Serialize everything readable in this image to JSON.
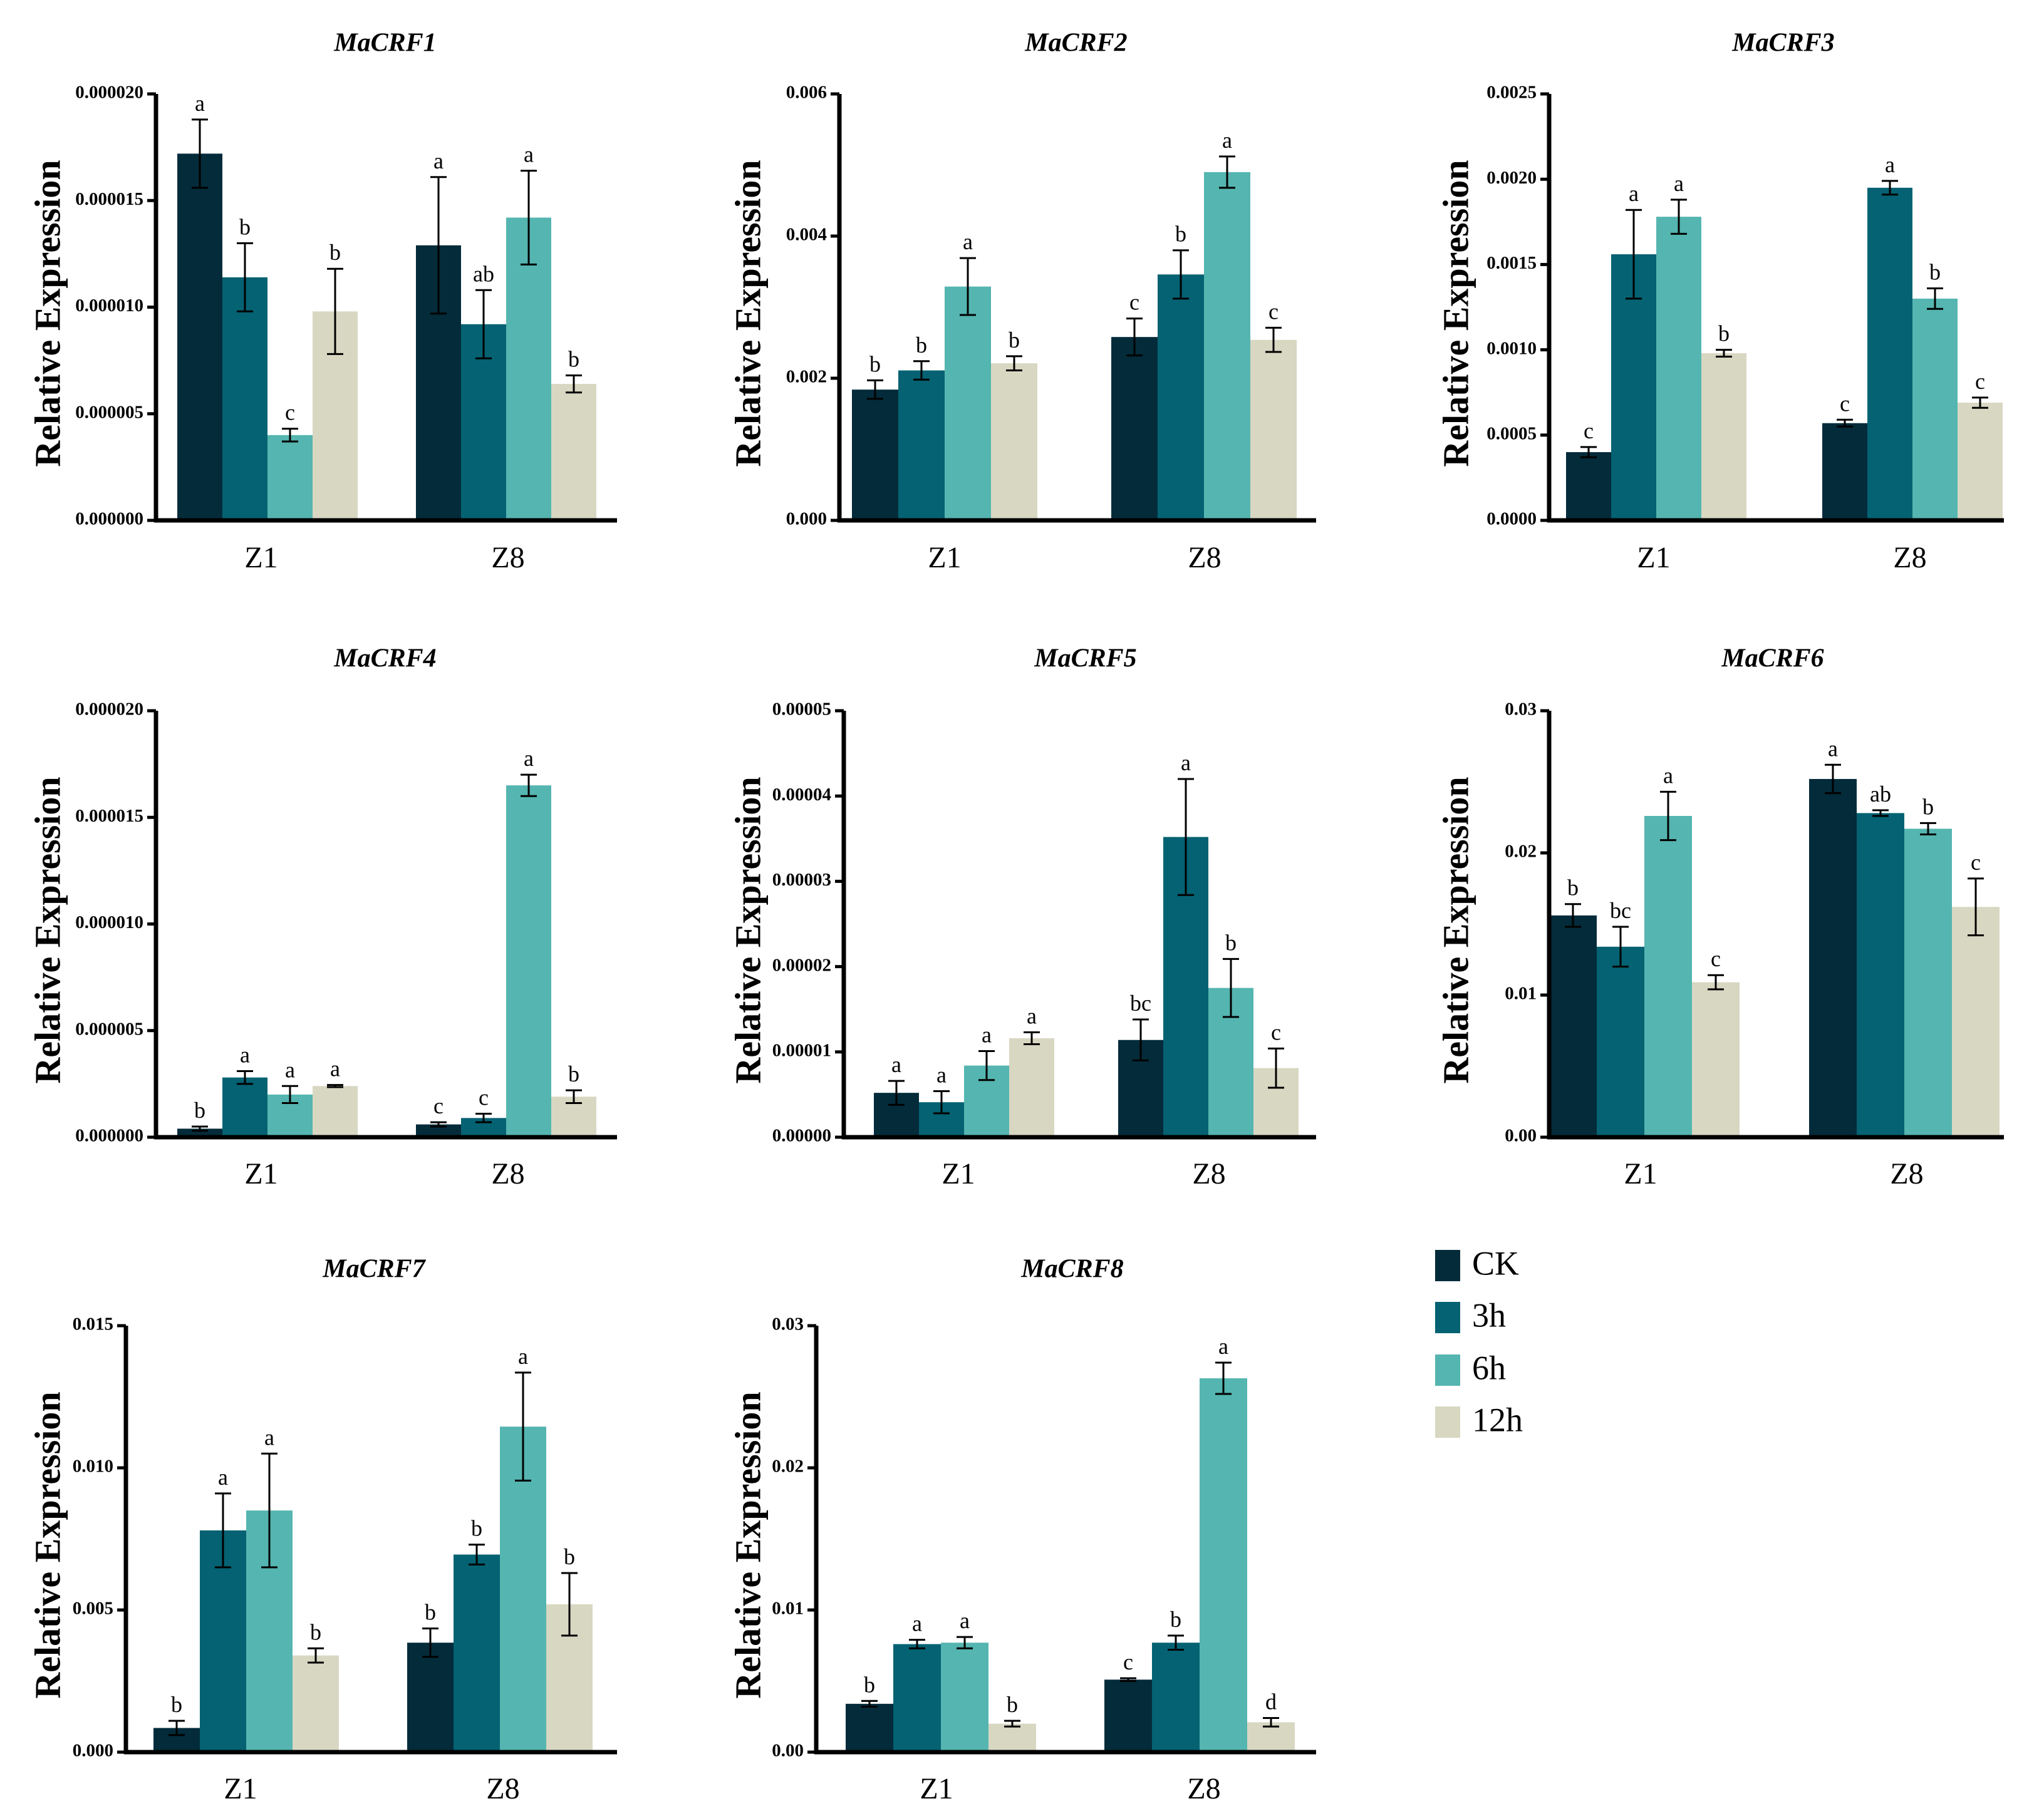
{
  "colors": {
    "CK": "#032b3a",
    "3h": "#046272",
    "6h": "#55b5b0",
    "12h": "#d8d7c2"
  },
  "legend": {
    "items": [
      "CK",
      "3h",
      "6h",
      "12h"
    ]
  },
  "chart_data": [
    {
      "type": "bar",
      "title": "MaCRF1",
      "ylabel": "Relative Expression",
      "categories": [
        "Z1",
        "Z8"
      ],
      "ylim": [
        0,
        2e-05
      ],
      "yticks": [
        "0.000000",
        "0.000005",
        "0.000010",
        "0.000015",
        "0.000020"
      ],
      "series": [
        {
          "name": "CK",
          "values": [
            1.72e-05,
            1.29e-05
          ],
          "errors": [
            1.6e-06,
            3.2e-06
          ],
          "letters": [
            "a",
            "a"
          ]
        },
        {
          "name": "3h",
          "values": [
            1.14e-05,
            9.2e-06
          ],
          "errors": [
            1.6e-06,
            1.6e-06
          ],
          "letters": [
            "b",
            "ab"
          ]
        },
        {
          "name": "6h",
          "values": [
            4e-06,
            1.42e-05
          ],
          "errors": [
            3e-07,
            2.2e-06
          ],
          "letters": [
            "c",
            "a"
          ]
        },
        {
          "name": "12h",
          "values": [
            9.8e-06,
            6.4e-06
          ],
          "errors": [
            2e-06,
            4e-07
          ],
          "letters": [
            "b",
            "b"
          ]
        }
      ]
    },
    {
      "type": "bar",
      "title": "MaCRF2",
      "ylabel": "Relative Expression",
      "categories": [
        "Z1",
        "Z8"
      ],
      "ylim": [
        0,
        0.006
      ],
      "yticks": [
        "0.000",
        "0.002",
        "0.004",
        "0.006"
      ],
      "series": [
        {
          "name": "CK",
          "values": [
            0.00184,
            0.00258
          ],
          "errors": [
            0.00013,
            0.00026
          ],
          "letters": [
            "b",
            "c"
          ]
        },
        {
          "name": "3h",
          "values": [
            0.00211,
            0.00346
          ],
          "errors": [
            0.00013,
            0.00034
          ],
          "letters": [
            "b",
            "b"
          ]
        },
        {
          "name": "6h",
          "values": [
            0.00329,
            0.0049
          ],
          "errors": [
            0.0004,
            0.00022
          ],
          "letters": [
            "a",
            "a"
          ]
        },
        {
          "name": "12h",
          "values": [
            0.00221,
            0.00254
          ],
          "errors": [
            0.0001,
            0.00017
          ],
          "letters": [
            "b",
            "c"
          ]
        }
      ]
    },
    {
      "type": "bar",
      "title": "MaCRF3",
      "ylabel": "Relative Expression",
      "categories": [
        "Z1",
        "Z8"
      ],
      "ylim": [
        0,
        0.0025
      ],
      "yticks": [
        "0.0000",
        "0.0005",
        "0.0010",
        "0.0015",
        "0.0020",
        "0.0025"
      ],
      "series": [
        {
          "name": "CK",
          "values": [
            0.0004,
            0.00057
          ],
          "errors": [
            3e-05,
            2e-05
          ],
          "letters": [
            "c",
            "c"
          ]
        },
        {
          "name": "3h",
          "values": [
            0.00156,
            0.00195
          ],
          "errors": [
            0.00026,
            4e-05
          ],
          "letters": [
            "a",
            "a"
          ]
        },
        {
          "name": "6h",
          "values": [
            0.00178,
            0.0013
          ],
          "errors": [
            0.0001,
            6e-05
          ],
          "letters": [
            "a",
            "b"
          ]
        },
        {
          "name": "12h",
          "values": [
            0.00098,
            0.00069
          ],
          "errors": [
            2e-05,
            3e-05
          ],
          "letters": [
            "b",
            "c"
          ]
        }
      ]
    },
    {
      "type": "bar",
      "title": "MaCRF4",
      "ylabel": "Relative Expression",
      "categories": [
        "Z1",
        "Z8"
      ],
      "ylim": [
        0,
        2e-05
      ],
      "yticks": [
        "0.000000",
        "0.000005",
        "0.000010",
        "0.000015",
        "0.000020"
      ],
      "series": [
        {
          "name": "CK",
          "values": [
            4e-07,
            6e-07
          ],
          "errors": [
            1e-07,
            1e-07
          ],
          "letters": [
            "b",
            "c"
          ]
        },
        {
          "name": "3h",
          "values": [
            2.8e-06,
            9e-07
          ],
          "errors": [
            3e-07,
            2e-07
          ],
          "letters": [
            "a",
            "c"
          ]
        },
        {
          "name": "6h",
          "values": [
            2e-06,
            1.65e-05
          ],
          "errors": [
            4e-07,
            5e-07
          ],
          "letters": [
            "a",
            "a"
          ]
        },
        {
          "name": "12h",
          "values": [
            2.4e-06,
            1.9e-06
          ],
          "errors": [
            5e-08,
            3e-07
          ],
          "letters": [
            "a",
            "b"
          ]
        }
      ]
    },
    {
      "type": "bar",
      "title": "MaCRF5",
      "ylabel": "Relative Expression",
      "categories": [
        "Z1",
        "Z8"
      ],
      "ylim": [
        0,
        5e-05
      ],
      "yticks": [
        "0.00000",
        "0.00001",
        "0.00002",
        "0.00003",
        "0.00004",
        "0.00005"
      ],
      "series": [
        {
          "name": "CK",
          "values": [
            5.2e-06,
            1.14e-05
          ],
          "errors": [
            1.4e-06,
            2.4e-06
          ],
          "letters": [
            "a",
            "bc"
          ]
        },
        {
          "name": "3h",
          "values": [
            4.1e-06,
            3.52e-05
          ],
          "errors": [
            1.3e-06,
            6.8e-06
          ],
          "letters": [
            "a",
            "a"
          ]
        },
        {
          "name": "6h",
          "values": [
            8.4e-06,
            1.75e-05
          ],
          "errors": [
            1.7e-06,
            3.4e-06
          ],
          "letters": [
            "a",
            "b"
          ]
        },
        {
          "name": "12h",
          "values": [
            1.16e-05,
            8.1e-06
          ],
          "errors": [
            7e-07,
            2.3e-06
          ],
          "letters": [
            "a",
            "c"
          ]
        }
      ]
    },
    {
      "type": "bar",
      "title": "MaCRF6",
      "ylabel": "Relative Expression",
      "categories": [
        "Z1",
        "Z8"
      ],
      "ylim": [
        0,
        0.03
      ],
      "yticks": [
        "0.00",
        "0.01",
        "0.02",
        "0.03"
      ],
      "series": [
        {
          "name": "CK",
          "values": [
            0.0156,
            0.0252
          ],
          "errors": [
            0.0008,
            0.001
          ],
          "letters": [
            "b",
            "a"
          ]
        },
        {
          "name": "3h",
          "values": [
            0.0134,
            0.0228
          ],
          "errors": [
            0.0014,
            0.0002
          ],
          "letters": [
            "bc",
            "ab"
          ]
        },
        {
          "name": "6h",
          "values": [
            0.0226,
            0.0217
          ],
          "errors": [
            0.0017,
            0.0004
          ],
          "letters": [
            "a",
            "b"
          ]
        },
        {
          "name": "12h",
          "values": [
            0.0109,
            0.0162
          ],
          "errors": [
            0.0005,
            0.002
          ],
          "letters": [
            "c",
            "c"
          ]
        }
      ]
    },
    {
      "type": "bar",
      "title": "MaCRF7",
      "ylabel": "Relative Expression",
      "categories": [
        "Z1",
        "Z8"
      ],
      "ylim": [
        0,
        0.015
      ],
      "yticks": [
        "0.000",
        "0.005",
        "0.010",
        "0.015"
      ],
      "series": [
        {
          "name": "CK",
          "values": [
            0.00085,
            0.00385
          ],
          "errors": [
            0.00025,
            0.0005
          ],
          "letters": [
            "b",
            "b"
          ]
        },
        {
          "name": "3h",
          "values": [
            0.0078,
            0.00695
          ],
          "errors": [
            0.0013,
            0.00035
          ],
          "letters": [
            "a",
            "b"
          ]
        },
        {
          "name": "6h",
          "values": [
            0.0085,
            0.01145
          ],
          "errors": [
            0.002,
            0.0019
          ],
          "letters": [
            "a",
            "a"
          ]
        },
        {
          "name": "12h",
          "values": [
            0.0034,
            0.0052
          ],
          "errors": [
            0.00025,
            0.0011
          ],
          "letters": [
            "b",
            "b"
          ]
        }
      ]
    },
    {
      "type": "bar",
      "title": "MaCRF8",
      "ylabel": "Relative Expression",
      "categories": [
        "Z1",
        "Z8"
      ],
      "ylim": [
        0,
        0.03
      ],
      "yticks": [
        "0.00",
        "0.01",
        "0.02",
        "0.03"
      ],
      "series": [
        {
          "name": "CK",
          "values": [
            0.0034,
            0.0051
          ],
          "errors": [
            0.0002,
            0.0001
          ],
          "letters": [
            "b",
            "c"
          ]
        },
        {
          "name": "3h",
          "values": [
            0.0076,
            0.0077
          ],
          "errors": [
            0.0003,
            0.0005
          ],
          "letters": [
            "a",
            "b"
          ]
        },
        {
          "name": "6h",
          "values": [
            0.0077,
            0.0263
          ],
          "errors": [
            0.0004,
            0.0011
          ],
          "letters": [
            "a",
            "a"
          ]
        },
        {
          "name": "12h",
          "values": [
            0.002,
            0.0021
          ],
          "errors": [
            0.0002,
            0.0003
          ],
          "letters": [
            "b",
            "d"
          ]
        }
      ]
    }
  ]
}
